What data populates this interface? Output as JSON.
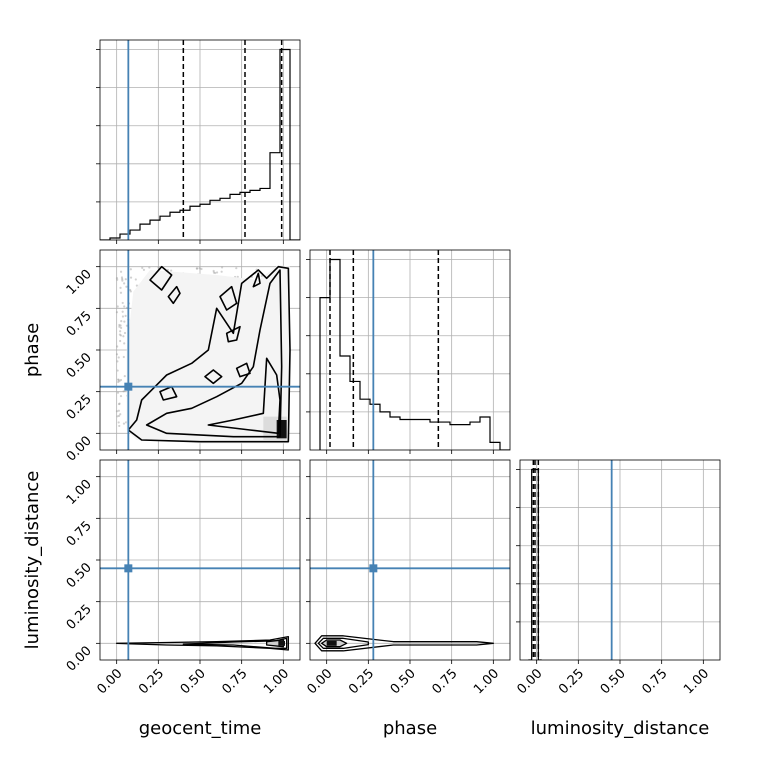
{
  "chart_data": {
    "type": "corner",
    "parameters": [
      "geocent_time",
      "phase",
      "luminosity_distance"
    ],
    "axis_range": [
      -0.1,
      1.1
    ],
    "ticks": [
      0.0,
      0.25,
      0.5,
      0.75,
      1.0
    ],
    "tick_labels": [
      "0.00",
      "0.25",
      "0.50",
      "0.75",
      "1.00"
    ],
    "grid": true,
    "truth_color": "#4682b4",
    "truths": {
      "geocent_time": 0.07,
      "phase": 0.28,
      "luminosity_distance": 0.45
    },
    "quantiles": {
      "geocent_time": [
        0.4,
        0.77,
        0.99
      ],
      "phase": [
        0.02,
        0.16,
        0.67
      ],
      "luminosity_distance": [
        -0.02,
        -0.01,
        0.01
      ]
    },
    "histograms": {
      "geocent_time": {
        "edges": [
          -0.1,
          -0.04,
          0.02,
          0.08,
          0.14,
          0.2,
          0.26,
          0.32,
          0.38,
          0.44,
          0.5,
          0.56,
          0.62,
          0.68,
          0.74,
          0.8,
          0.86,
          0.92,
          0.98,
          1.04,
          1.1
        ],
        "counts": [
          0,
          1,
          3,
          5,
          8,
          10,
          12,
          14,
          15,
          17,
          18,
          20,
          21,
          23,
          24,
          25,
          26,
          44,
          96,
          0
        ]
      },
      "phase": {
        "edges": [
          -0.04,
          0.02,
          0.08,
          0.14,
          0.2,
          0.26,
          0.32,
          0.38,
          0.44,
          0.5,
          0.56,
          0.62,
          0.68,
          0.74,
          0.8,
          0.86,
          0.92,
          0.98,
          1.04,
          1.1
        ],
        "counts": [
          60,
          75,
          37,
          27,
          20,
          18,
          15,
          13,
          12,
          12,
          12,
          11,
          11,
          10,
          10,
          11,
          13,
          3,
          0
        ]
      },
      "luminosity_distance": {
        "edges": [
          -0.05,
          -0.03,
          -0.01,
          0.01,
          0.03
        ],
        "counts": [
          0,
          100,
          100,
          0
        ]
      }
    }
  }
}
